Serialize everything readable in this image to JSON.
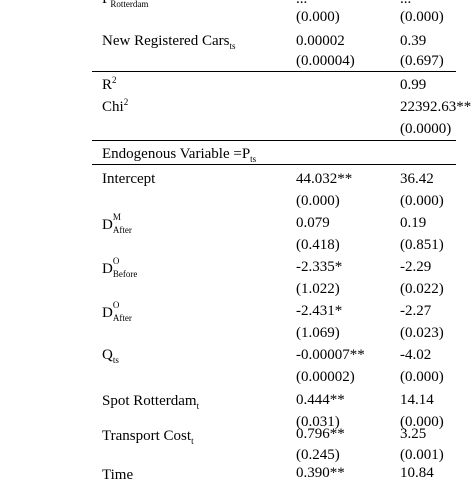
{
  "table": {
    "top_partial": {
      "label": "P",
      "sub": "Rotterdam",
      "v1": "...",
      "v2": "..."
    },
    "rows_section1": [
      {
        "label": "",
        "v1": "(0.000)",
        "v2": "(0.000)"
      },
      {
        "label": "New Registered Cars",
        "sub": "ts",
        "v1": "0.00002",
        "v2": "0.39"
      },
      {
        "label": "",
        "v1": "(0.00004)",
        "v2": "(0.697)"
      }
    ],
    "stats": [
      {
        "label": "R",
        "sup": "2",
        "v1": "",
        "v2": "0.99"
      },
      {
        "label": "Chi",
        "sup": "2",
        "v1": "",
        "v2": "22392.63**"
      },
      {
        "label": "",
        "v1": "",
        "v2": "(0.0000)"
      }
    ],
    "section2_header": {
      "text": "Endogenous Variable =P",
      "sub": "ts"
    },
    "rows_section2": [
      {
        "label": "Intercept",
        "v1": "44.032**",
        "v2": "36.42"
      },
      {
        "label": "",
        "v1": "(0.000)",
        "v2": "(0.000)"
      },
      {
        "label": "D",
        "sup": "M",
        "sub": "After",
        "v1": "0.079",
        "v2": "0.19"
      },
      {
        "label": "",
        "v1": "(0.418)",
        "v2": "(0.851)"
      },
      {
        "label": "D",
        "sup": "O",
        "sub": "Before",
        "v1": "-2.335*",
        "v2": "-2.29"
      },
      {
        "label": "",
        "v1": "(1.022)",
        "v2": "(0.022)"
      },
      {
        "label": "D",
        "sup": "O",
        "sub": "After",
        "v1": "-2.431*",
        "v2": "-2.27"
      },
      {
        "label": "",
        "v1": "(1.069)",
        "v2": "(0.023)"
      },
      {
        "label": "Q",
        "sub": "ts",
        "v1": "-0.00007**",
        "v2": "-4.02"
      },
      {
        "label": "",
        "v1": "(0.00002)",
        "v2": "(0.000)"
      },
      {
        "label": "Spot Rotterdam",
        "sub": "t",
        "v1": "0.444**",
        "v2": "14.14"
      },
      {
        "label": "",
        "v1": "(0.031)",
        "v2": "(0.000)"
      },
      {
        "label": "Transport Cost",
        "sub": "t",
        "v1": "0.796**",
        "v2": "3.25"
      },
      {
        "label": "",
        "v1": "(0.245)",
        "v2": "(0.001)"
      },
      {
        "label": "Time",
        "v1": "0.390**",
        "v2": "10.84"
      }
    ]
  }
}
